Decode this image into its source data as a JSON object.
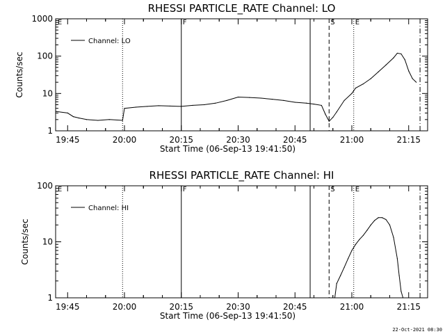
{
  "footer": {
    "timestamp": "22-Oct-2021 08:30"
  },
  "chart_data": [
    {
      "type": "line",
      "title": "RHESSI PARTICLE_RATE Channel: LO",
      "xlabel": "Start Time (06-Sep-13 19:41:50)",
      "ylabel": "Counts/sec",
      "yscale": "log",
      "xlim": [
        "19:41:50",
        "21:20:00"
      ],
      "ylim": [
        1,
        1000
      ],
      "xticks": [
        "19:45",
        "20:00",
        "20:15",
        "20:30",
        "20:45",
        "21:00",
        "21:15"
      ],
      "yticks": [
        "1",
        "10",
        "100",
        "1000"
      ],
      "legend": {
        "placement": "top-left",
        "entries": [
          "Channel: LO"
        ]
      },
      "flags": [
        {
          "label": "E",
          "time": "19:42:00",
          "style": "none"
        },
        {
          "label": "",
          "time": "19:59:30",
          "style": "dotted"
        },
        {
          "label": "F",
          "time": "20:15:00",
          "style": "solid"
        },
        {
          "label": "",
          "time": "20:49:00",
          "style": "solid"
        },
        {
          "label": "S",
          "time": "20:54:00",
          "style": "dashed"
        },
        {
          "label": "E",
          "time": "21:00:30",
          "style": "dotted"
        },
        {
          "label": "",
          "time": "21:18:00",
          "style": "dashdot"
        }
      ],
      "series": [
        {
          "name": "Channel: LO",
          "x": [
            "19:42:00",
            "19:45:00",
            "19:46:30",
            "19:48:00",
            "19:50:00",
            "19:53:00",
            "19:56:00",
            "19:59:30",
            "20:00:00",
            "20:03:00",
            "20:06:00",
            "20:09:00",
            "20:12:00",
            "20:15:00",
            "20:18:00",
            "20:21:00",
            "20:24:00",
            "20:27:00",
            "20:30:00",
            "20:33:00",
            "20:36:00",
            "20:39:00",
            "20:42:00",
            "20:45:00",
            "20:48:00",
            "20:50:00",
            "20:52:00",
            "20:53:00",
            "20:54:00",
            "20:55:00",
            "20:56:00",
            "20:58:00",
            "21:00:00",
            "21:01:00",
            "21:03:00",
            "21:05:00",
            "21:07:00",
            "21:09:00",
            "21:11:00",
            "21:12:00",
            "21:13:00",
            "21:14:00",
            "21:15:00",
            "21:16:00",
            "21:17:00"
          ],
          "values": [
            3.3,
            3.0,
            2.4,
            2.2,
            2.0,
            1.9,
            2.0,
            1.9,
            4.0,
            4.3,
            4.5,
            4.7,
            4.6,
            4.5,
            4.8,
            5.0,
            5.5,
            6.5,
            8.0,
            7.8,
            7.5,
            7.0,
            6.5,
            5.8,
            5.5,
            5.2,
            4.8,
            2.8,
            1.8,
            2.3,
            3.2,
            6.5,
            10.0,
            14.0,
            18.0,
            25.0,
            38.0,
            58.0,
            90.0,
            120.0,
            115.0,
            80.0,
            40.0,
            25.0,
            20.0
          ]
        }
      ]
    },
    {
      "type": "line",
      "title": "RHESSI PARTICLE_RATE Channel: HI",
      "xlabel": "Start Time (06-Sep-13 19:41:50)",
      "ylabel": "Counts/sec",
      "yscale": "log",
      "xlim": [
        "19:41:50",
        "21:20:00"
      ],
      "ylim": [
        1,
        100
      ],
      "xticks": [
        "19:45",
        "20:00",
        "20:15",
        "20:30",
        "20:45",
        "21:00",
        "21:15"
      ],
      "yticks": [
        "1",
        "10",
        "100"
      ],
      "legend": {
        "placement": "top-left",
        "entries": [
          "Channel: HI"
        ]
      },
      "flags": [
        {
          "label": "E",
          "time": "19:42:00",
          "style": "none"
        },
        {
          "label": "",
          "time": "19:59:30",
          "style": "dotted"
        },
        {
          "label": "F",
          "time": "20:15:00",
          "style": "solid"
        },
        {
          "label": "",
          "time": "20:49:00",
          "style": "solid"
        },
        {
          "label": "S",
          "time": "20:54:00",
          "style": "dashed"
        },
        {
          "label": "E",
          "time": "21:00:30",
          "style": "dotted"
        },
        {
          "label": "",
          "time": "21:18:00",
          "style": "dashdot"
        }
      ],
      "series": [
        {
          "name": "Channel: HI",
          "x": [
            "20:55:30",
            "20:56:00",
            "20:57:00",
            "20:58:00",
            "20:59:00",
            "21:00:00",
            "21:01:00",
            "21:02:00",
            "21:03:00",
            "21:04:00",
            "21:05:00",
            "21:06:00",
            "21:07:00",
            "21:08:00",
            "21:09:00",
            "21:10:00",
            "21:11:00",
            "21:12:00",
            "21:12:30",
            "21:13:00",
            "21:13:30"
          ],
          "values": [
            1.0,
            1.8,
            2.5,
            3.5,
            5.0,
            7.0,
            9.0,
            11.0,
            13.0,
            16.0,
            20.0,
            24.0,
            27.0,
            27.0,
            25.0,
            20.0,
            12.0,
            5.0,
            2.5,
            1.3,
            1.0
          ]
        }
      ]
    }
  ]
}
